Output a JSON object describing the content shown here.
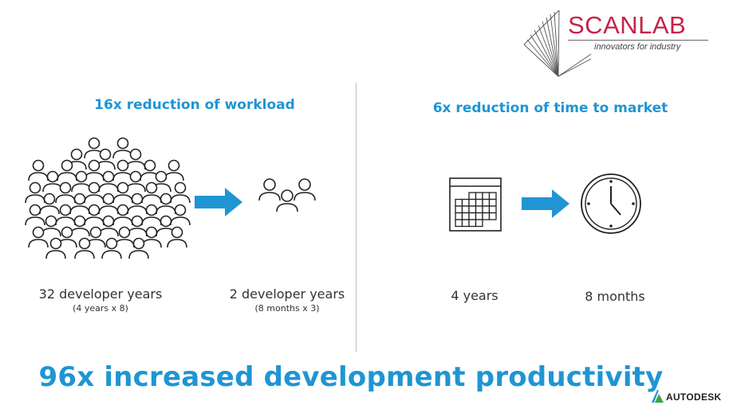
{
  "logo": {
    "brand": "SCANLAB",
    "tagline": "innovators for industry"
  },
  "left": {
    "heading": "16x reduction of workload",
    "before_label": "32 developer years",
    "before_sub": "(4 years x 8)",
    "after_label": "2 developer years",
    "after_sub": "(8 months x 3)"
  },
  "right": {
    "heading": "6x reduction of time to market",
    "before_label": "4 years",
    "after_label": "8 months"
  },
  "footer": {
    "headline": "96x increased development productivity",
    "partner": "AUTODESK"
  },
  "colors": {
    "accent": "#1f95d3",
    "brand": "#c7224a",
    "icon_stroke": "#222222"
  },
  "icons": {
    "crowd": "people-group-icon",
    "team": "small-team-icon",
    "arrow": "right-arrow-icon",
    "calendar": "calendar-icon",
    "clock": "clock-icon"
  }
}
